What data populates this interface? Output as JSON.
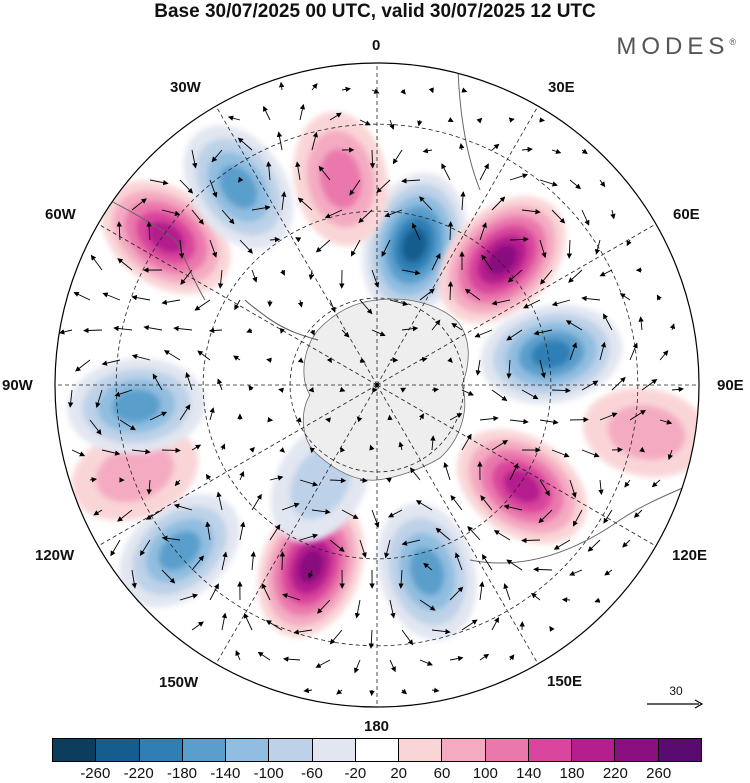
{
  "title": "Base 30/07/2025 00 UTC, valid 30/07/2025 12 UTC",
  "brand": "MODES",
  "brand_mark": "®",
  "longitude_labels": {
    "lon_0": "0",
    "lon_30e": "30E",
    "lon_60e": "60E",
    "lon_90e": "90E",
    "lon_120e": "120E",
    "lon_150e": "150E",
    "lon_180": "180",
    "lon_150w": "150W",
    "lon_120w": "120W",
    "lon_90w": "90W",
    "lon_60w": "60W",
    "lon_30w": "30W"
  },
  "reference_vector": {
    "label": "30"
  },
  "colorbar": {
    "colors": [
      "#0c3d5c",
      "#155d8f",
      "#2f7fb5",
      "#5a9fcc",
      "#90bde0",
      "#bdd2e8",
      "#e2e6f1",
      "#ffffff",
      "#fad5d7",
      "#f4abc2",
      "#ea78ac",
      "#d9459c",
      "#b51e8d",
      "#8a0f80",
      "#5a0b70"
    ],
    "tick_labels": [
      "-260",
      "-220",
      "-180",
      "-140",
      "-100",
      "-60",
      "-20",
      "20",
      "60",
      "100",
      "140",
      "180",
      "220",
      "260"
    ]
  },
  "anomaly_centers": [
    {
      "lon": 15,
      "lat_ring": 0.45,
      "value": -240
    },
    {
      "lon": 45,
      "lat_ring": 0.55,
      "value": 250
    },
    {
      "lon": 80,
      "lat_ring": 0.55,
      "value": -200
    },
    {
      "lon": 125,
      "lat_ring": 0.55,
      "value": 200
    },
    {
      "lon": 165,
      "lat_ring": 0.6,
      "value": -170
    },
    {
      "lon": -160,
      "lat_ring": 0.6,
      "value": 230
    },
    {
      "lon": -130,
      "lat_ring": 0.8,
      "value": -140
    },
    {
      "lon": -110,
      "lat_ring": 0.8,
      "value": 90
    },
    {
      "lon": -95,
      "lat_ring": 0.75,
      "value": -160
    },
    {
      "lon": -55,
      "lat_ring": 0.8,
      "value": 190
    },
    {
      "lon": -35,
      "lat_ring": 0.75,
      "value": -140
    },
    {
      "lon": -10,
      "lat_ring": 0.65,
      "value": 130
    },
    {
      "lon": 100,
      "lat_ring": 0.85,
      "value": 60
    },
    {
      "lon": -150,
      "lat_ring": 0.35,
      "value": -60
    }
  ]
}
